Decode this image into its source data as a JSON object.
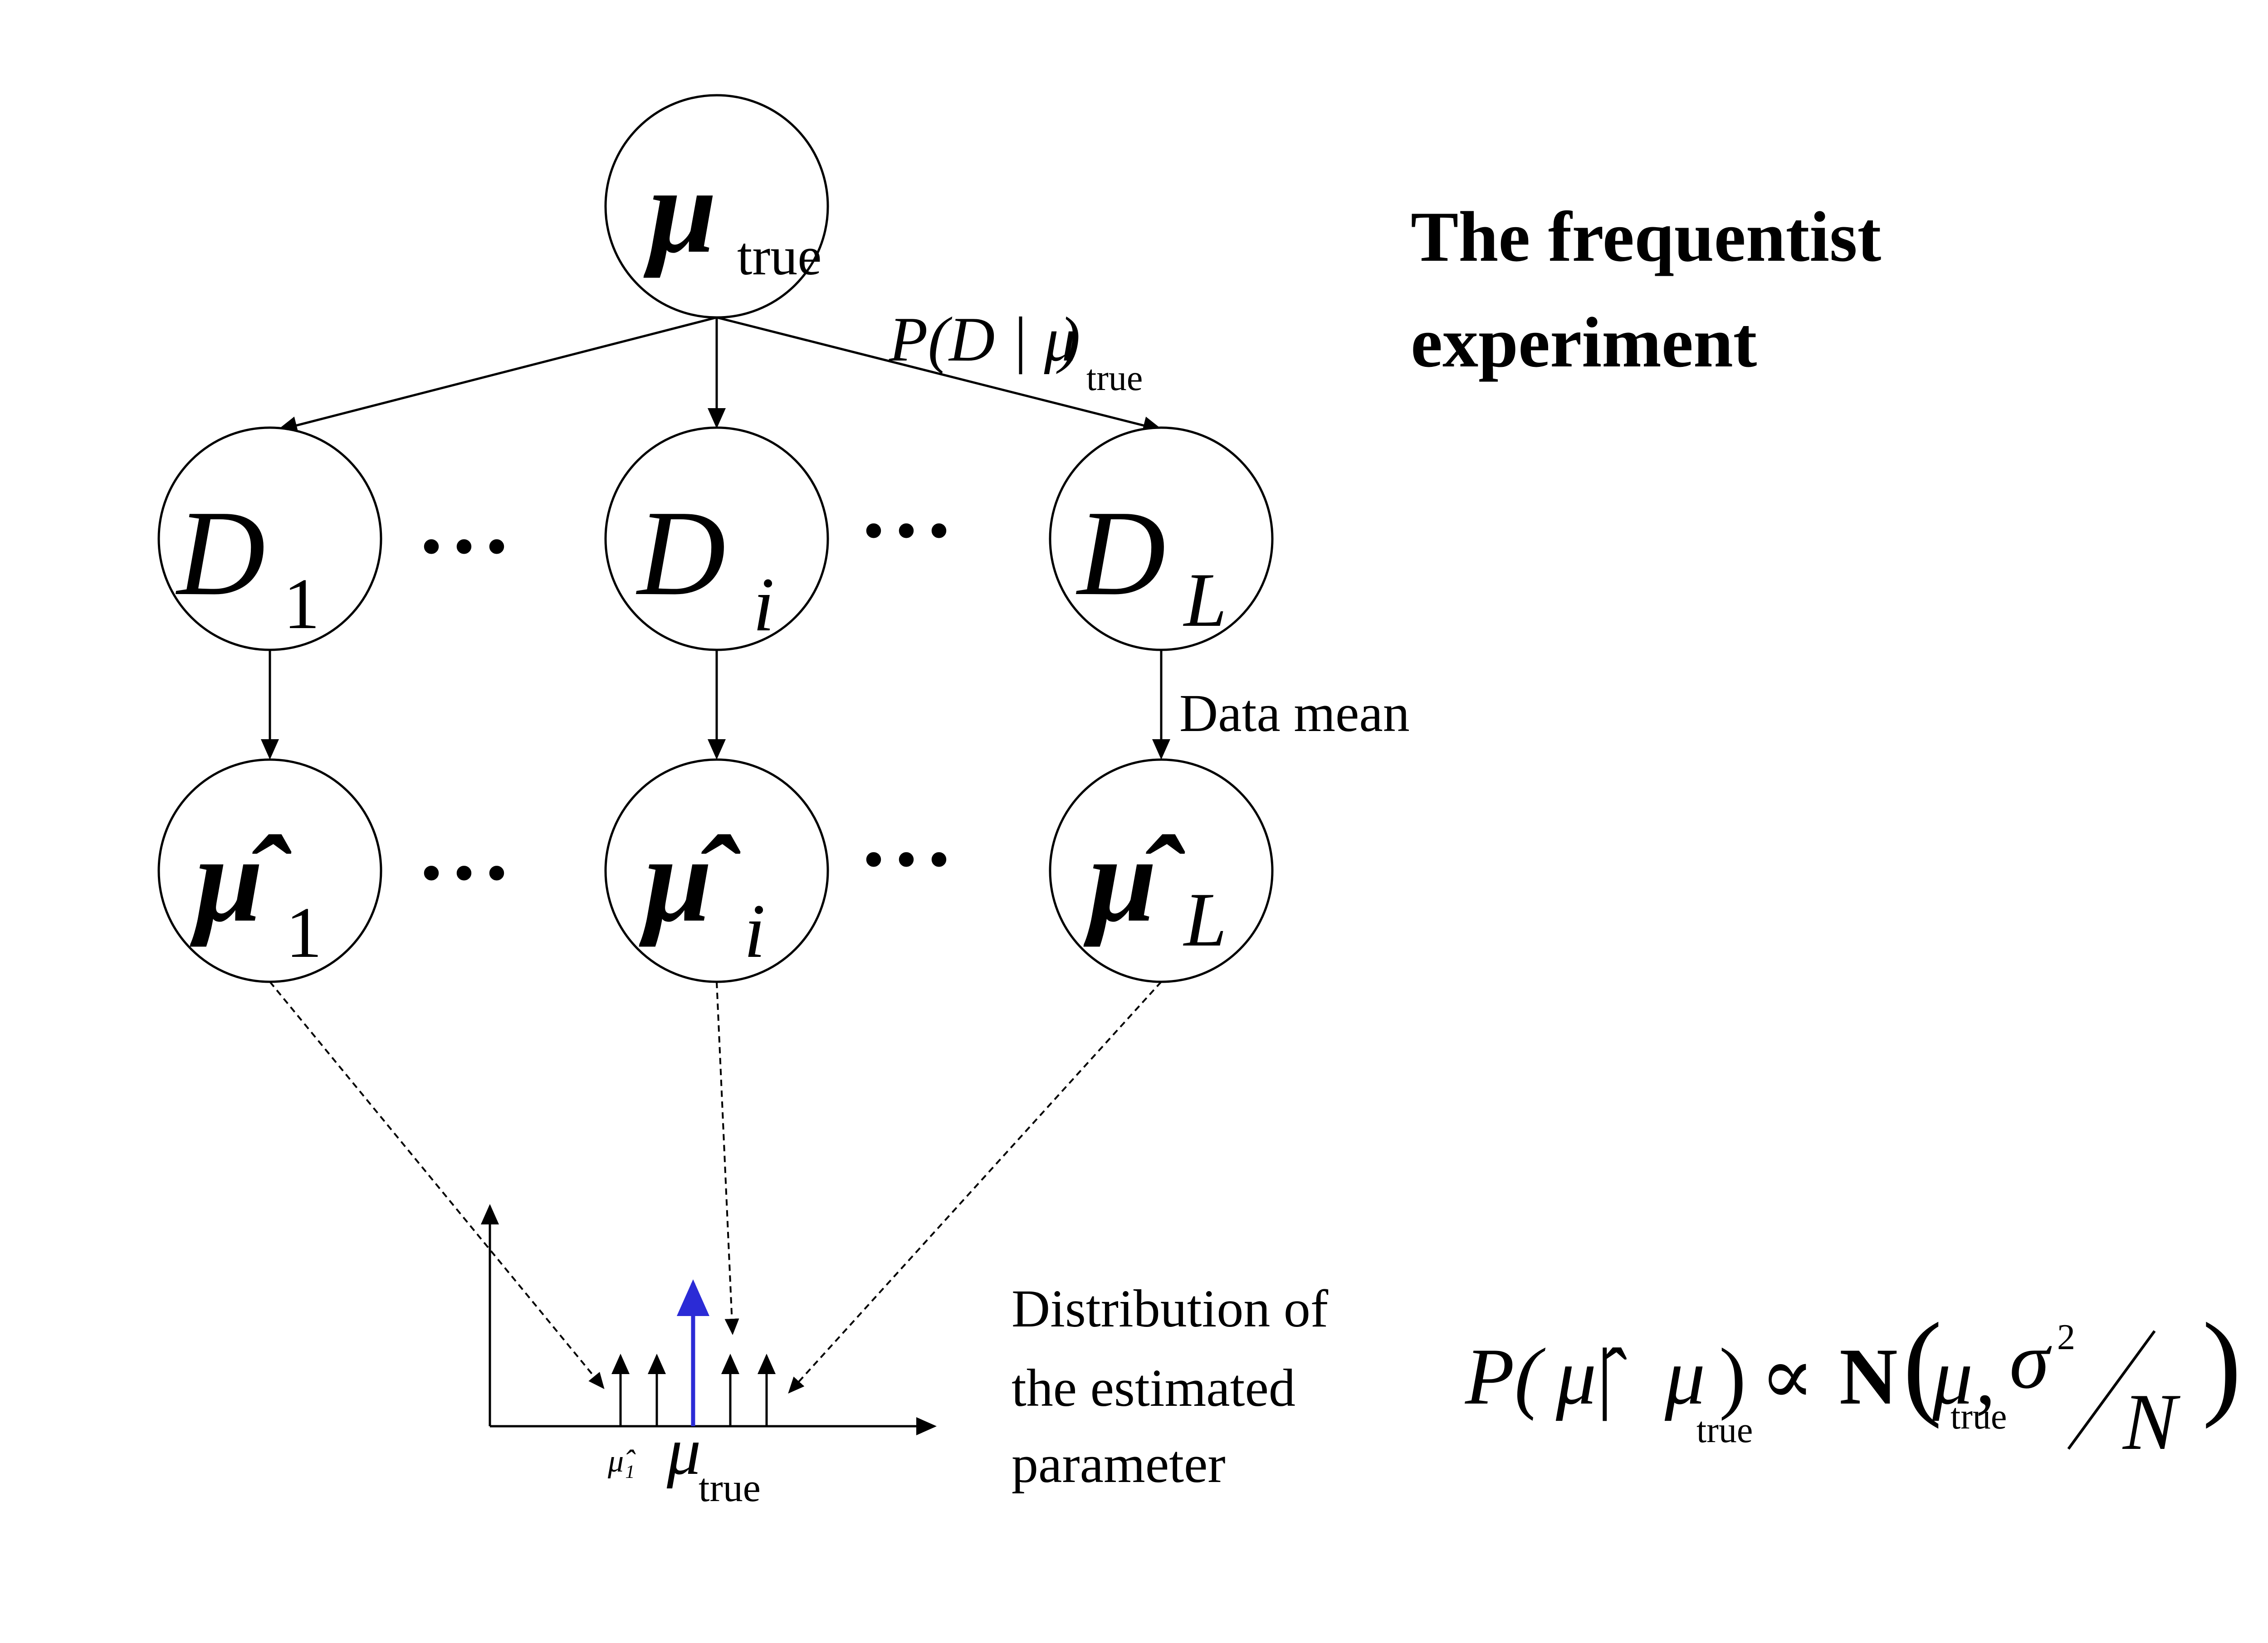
{
  "title": {
    "line1": "The frequentist",
    "line2": "experiment"
  },
  "nodes": {
    "root": {
      "symbol": "μ",
      "subscript": "true"
    },
    "data": [
      {
        "symbol": "D",
        "subscript": "1"
      },
      {
        "symbol": "D",
        "subscript": "i"
      },
      {
        "symbol": "D",
        "subscript": "L"
      }
    ],
    "estimates": [
      {
        "symbol": "μ̂",
        "subscript": "1"
      },
      {
        "symbol": "μ̂",
        "subscript": "i"
      },
      {
        "symbol": "μ̂",
        "subscript": "L"
      }
    ],
    "ellipsis": "• • •"
  },
  "edge_labels": {
    "likelihood": {
      "text": "P(D | μ",
      "subscript": "true",
      "close": ")"
    },
    "data_mean": "Data mean"
  },
  "distribution": {
    "estimate_label": "μ̂₁",
    "true_label": "μ",
    "true_subscript": "true",
    "caption_line1": "Distribution of",
    "caption_line2": "the estimated",
    "caption_line3": "parameter",
    "true_color": "#2b2bd6"
  },
  "formula": {
    "lhs_open": "P(",
    "hat_mu": "μ̂",
    "bar": " | ",
    "mu": "μ",
    "mu_sub": "true",
    "lhs_close": ")",
    "proportional": "∝",
    "normal": "N",
    "open": "(",
    "mu2": "μ",
    "mu2_sub": "true",
    "comma": ",",
    "sigma": "σ",
    "sigma_exp": "2",
    "slash": "⁄",
    "N": "N",
    "close": ")"
  }
}
